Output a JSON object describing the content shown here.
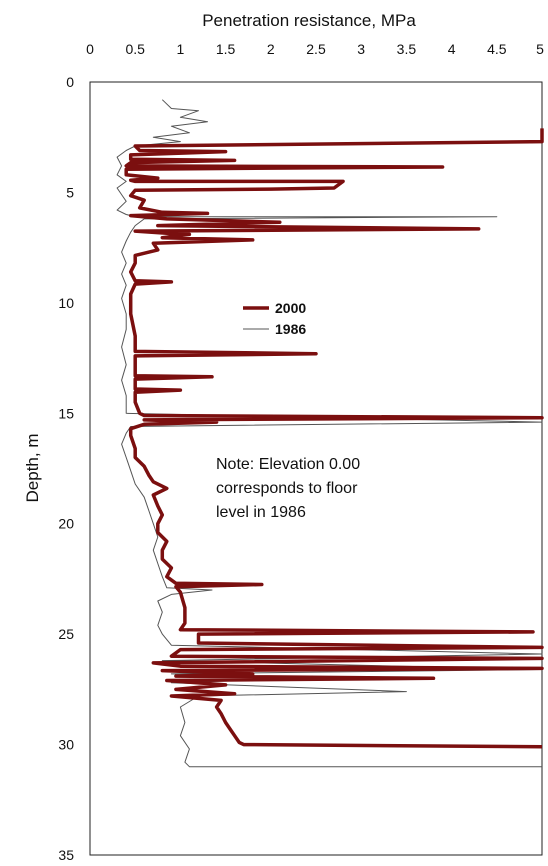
{
  "chart_data": {
    "type": "line",
    "xlabel": "Penetration resistance, MPa",
    "ylabel": "Depth, m",
    "xlim": [
      0,
      5
    ],
    "ylim": [
      0,
      35
    ],
    "y_inverted": true,
    "x_axis_position": "top",
    "x_ticks": [
      "0",
      "0.5",
      "1",
      "1.5",
      "2",
      "2.5",
      "3",
      "3.5",
      "4",
      "4.5",
      "5"
    ],
    "y_ticks": [
      "0",
      "5",
      "10",
      "15",
      "20",
      "25",
      "30",
      "35"
    ],
    "legend_position": "center",
    "note": [
      "Note: Elevation 0.00",
      "corresponds to floor",
      "level in 1986"
    ],
    "series": [
      {
        "name": "2000",
        "color": "#7b0f0f",
        "line_style": "thick",
        "points": [
          [
            5,
            2.1
          ],
          [
            5,
            2.7
          ],
          [
            0.5,
            2.9
          ],
          [
            0.55,
            3.1
          ],
          [
            1.5,
            3.15
          ],
          [
            0.45,
            3.3
          ],
          [
            0.45,
            3.5
          ],
          [
            1.6,
            3.55
          ],
          [
            0.45,
            3.65
          ],
          [
            0.4,
            3.8
          ],
          [
            3.9,
            3.85
          ],
          [
            0.4,
            3.95
          ],
          [
            0.4,
            4.2
          ],
          [
            0.75,
            4.35
          ],
          [
            0.45,
            4.45
          ],
          [
            0.5,
            4.5
          ],
          [
            2.8,
            4.5
          ],
          [
            2.7,
            4.8
          ],
          [
            2.0,
            4.85
          ],
          [
            0.5,
            4.9
          ],
          [
            0.45,
            5.15
          ],
          [
            0.6,
            5.35
          ],
          [
            0.55,
            5.7
          ],
          [
            0.8,
            5.9
          ],
          [
            1.3,
            5.95
          ],
          [
            0.45,
            6.05
          ],
          [
            0.85,
            6.2
          ],
          [
            2.1,
            6.35
          ],
          [
            0.75,
            6.5
          ],
          [
            4.3,
            6.65
          ],
          [
            0.5,
            6.75
          ],
          [
            0.85,
            6.85
          ],
          [
            1.1,
            6.9
          ],
          [
            0.8,
            7.05
          ],
          [
            1.8,
            7.15
          ],
          [
            0.7,
            7.3
          ],
          [
            0.75,
            7.6
          ],
          [
            0.5,
            7.85
          ],
          [
            0.5,
            8.2
          ],
          [
            0.45,
            8.6
          ],
          [
            0.5,
            9.0
          ],
          [
            0.9,
            9.05
          ],
          [
            0.5,
            9.15
          ],
          [
            0.45,
            9.6
          ],
          [
            0.45,
            10.5
          ],
          [
            0.5,
            11.5
          ],
          [
            0.5,
            12.2
          ],
          [
            2.5,
            12.3
          ],
          [
            0.5,
            12.4
          ],
          [
            0.5,
            13.0
          ],
          [
            0.5,
            13.3
          ],
          [
            1.35,
            13.35
          ],
          [
            0.5,
            13.45
          ],
          [
            0.5,
            13.9
          ],
          [
            1.0,
            13.95
          ],
          [
            0.5,
            14.05
          ],
          [
            0.5,
            14.5
          ],
          [
            0.55,
            15.0
          ],
          [
            0.6,
            15.1
          ],
          [
            5.0,
            15.2
          ],
          [
            0.6,
            15.3
          ],
          [
            1.4,
            15.4
          ],
          [
            0.6,
            15.5
          ],
          [
            0.45,
            15.7
          ],
          [
            0.45,
            16.0
          ],
          [
            0.5,
            16.6
          ],
          [
            0.5,
            17.0
          ],
          [
            0.6,
            17.4
          ],
          [
            0.65,
            17.8
          ],
          [
            0.7,
            18.1
          ],
          [
            0.85,
            18.4
          ],
          [
            0.7,
            18.7
          ],
          [
            0.75,
            19.2
          ],
          [
            0.8,
            19.6
          ],
          [
            0.75,
            20.0
          ],
          [
            0.75,
            20.4
          ],
          [
            0.85,
            20.8
          ],
          [
            0.8,
            21.2
          ],
          [
            0.8,
            21.6
          ],
          [
            0.9,
            22.0
          ],
          [
            0.85,
            22.4
          ],
          [
            0.95,
            22.7
          ],
          [
            1.9,
            22.75
          ],
          [
            0.95,
            22.85
          ],
          [
            1.0,
            23.1
          ],
          [
            1.05,
            23.8
          ],
          [
            1.05,
            24.5
          ],
          [
            1.0,
            24.8
          ],
          [
            4.9,
            24.9
          ],
          [
            1.2,
            25.0
          ],
          [
            1.2,
            25.4
          ],
          [
            5.0,
            25.6
          ],
          [
            1.0,
            25.7
          ],
          [
            0.9,
            26.0
          ],
          [
            5.0,
            26.1
          ],
          [
            0.7,
            26.3
          ],
          [
            1.0,
            26.45
          ],
          [
            5.0,
            26.55
          ],
          [
            0.8,
            26.65
          ],
          [
            1.8,
            26.8
          ],
          [
            0.95,
            26.9
          ],
          [
            3.8,
            27.0
          ],
          [
            0.85,
            27.1
          ],
          [
            1.5,
            27.3
          ],
          [
            0.95,
            27.5
          ],
          [
            1.6,
            27.7
          ],
          [
            0.9,
            27.8
          ],
          [
            1.45,
            28.0
          ],
          [
            1.4,
            28.3
          ],
          [
            1.45,
            28.6
          ],
          [
            1.5,
            29.0
          ],
          [
            1.55,
            29.3
          ],
          [
            1.6,
            29.6
          ],
          [
            1.65,
            29.9
          ],
          [
            1.7,
            30.0
          ],
          [
            5.0,
            30.1
          ]
        ]
      },
      {
        "name": "1986",
        "color": "#555555",
        "line_style": "thin",
        "points": [
          [
            0.8,
            0.8
          ],
          [
            0.9,
            1.2
          ],
          [
            1.2,
            1.3
          ],
          [
            1.0,
            1.6
          ],
          [
            1.3,
            1.8
          ],
          [
            0.9,
            2.0
          ],
          [
            1.1,
            2.3
          ],
          [
            0.7,
            2.5
          ],
          [
            1.0,
            2.7
          ],
          [
            0.5,
            2.9
          ],
          [
            0.4,
            3.1
          ],
          [
            0.3,
            3.4
          ],
          [
            0.35,
            3.8
          ],
          [
            0.3,
            4.2
          ],
          [
            0.4,
            4.5
          ],
          [
            0.3,
            4.8
          ],
          [
            0.35,
            5.1
          ],
          [
            0.4,
            5.4
          ],
          [
            0.3,
            5.8
          ],
          [
            0.4,
            6.0
          ],
          [
            0.5,
            6.1
          ],
          [
            4.5,
            6.1
          ],
          [
            0.6,
            6.2
          ],
          [
            0.5,
            6.5
          ],
          [
            0.45,
            6.8
          ],
          [
            0.4,
            7.2
          ],
          [
            0.35,
            7.7
          ],
          [
            0.4,
            8.2
          ],
          [
            0.35,
            8.7
          ],
          [
            0.4,
            9.2
          ],
          [
            0.35,
            9.8
          ],
          [
            0.4,
            10.5
          ],
          [
            0.4,
            11.2
          ],
          [
            0.35,
            12.0
          ],
          [
            0.4,
            12.8
          ],
          [
            0.35,
            13.5
          ],
          [
            0.4,
            14.2
          ],
          [
            0.4,
            15.0
          ],
          [
            5.0,
            15.4
          ],
          [
            0.45,
            15.6
          ],
          [
            0.4,
            15.9
          ],
          [
            0.35,
            16.4
          ],
          [
            0.4,
            17.0
          ],
          [
            0.45,
            17.6
          ],
          [
            0.5,
            18.2
          ],
          [
            0.6,
            18.8
          ],
          [
            0.65,
            19.4
          ],
          [
            0.7,
            20.0
          ],
          [
            0.75,
            20.6
          ],
          [
            0.7,
            21.2
          ],
          [
            0.75,
            21.8
          ],
          [
            0.8,
            22.4
          ],
          [
            0.85,
            22.9
          ],
          [
            1.35,
            23.0
          ],
          [
            0.9,
            23.2
          ],
          [
            0.75,
            23.5
          ],
          [
            0.8,
            24.0
          ],
          [
            0.75,
            24.6
          ],
          [
            0.8,
            25.0
          ],
          [
            0.9,
            25.5
          ],
          [
            5.0,
            25.9
          ],
          [
            0.8,
            26.2
          ],
          [
            5.0,
            26.6
          ],
          [
            0.9,
            26.8
          ],
          [
            2.5,
            27.0
          ],
          [
            0.9,
            27.2
          ],
          [
            3.5,
            27.6
          ],
          [
            1.2,
            27.8
          ],
          [
            1.0,
            28.3
          ],
          [
            1.05,
            29.0
          ],
          [
            1.0,
            29.6
          ],
          [
            1.1,
            30.2
          ],
          [
            1.05,
            30.8
          ],
          [
            1.1,
            31.0
          ],
          [
            5.0,
            31.0
          ]
        ]
      }
    ]
  }
}
